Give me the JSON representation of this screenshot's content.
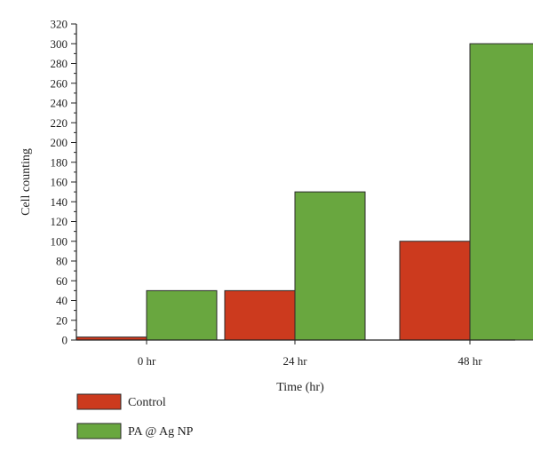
{
  "chart_data": {
    "type": "bar",
    "categories": [
      "0 hr",
      "24 hr",
      "48 hr"
    ],
    "series": [
      {
        "name": "Control",
        "values": [
          3,
          50,
          100
        ],
        "color": "#cc3a1e"
      },
      {
        "name": "PA @ Ag NP",
        "values": [
          50,
          150,
          300
        ],
        "color": "#69a73f"
      }
    ],
    "xlabel": "Time (hr)",
    "ylabel": "Cell counting",
    "ylim": [
      0,
      320
    ],
    "yticks": [
      0,
      20,
      40,
      60,
      80,
      100,
      120,
      140,
      160,
      180,
      200,
      220,
      240,
      260,
      280,
      300,
      320
    ],
    "grid": false,
    "legend_position": "bottom-left"
  }
}
